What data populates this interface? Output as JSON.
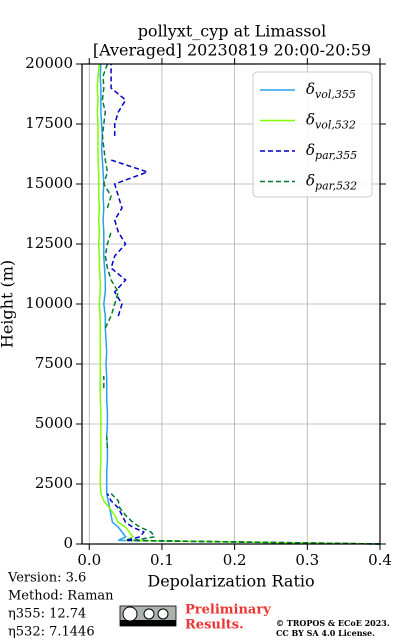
{
  "chart_data": {
    "type": "profile",
    "title": "pollyxt_cyp at Limassol",
    "subtitle": "[Averaged] 20230819 20:00-20:59",
    "xlabel": "Depolarization Ratio",
    "ylabel": "Height (m)",
    "xlim": [
      -0.01,
      0.4
    ],
    "ylim": [
      0,
      20000
    ],
    "xticks": [
      {
        "value": 0,
        "label": "0.0"
      },
      0.1,
      0.2,
      0.3,
      0.4
    ],
    "yticks": [
      0,
      2500,
      5000,
      7500,
      10000,
      12500,
      15000,
      17500,
      20000
    ],
    "grid": true,
    "legend": "upper right",
    "heights": [
      0,
      150,
      300,
      500,
      700,
      900,
      1200,
      1500,
      1800,
      2100,
      2500,
      3000,
      3500,
      4000,
      4500,
      5000,
      5500,
      6000,
      6500,
      7000,
      7500,
      8000,
      8500,
      9000,
      9500,
      10000,
      10500,
      11000,
      11500,
      12000,
      12500,
      13000,
      13500,
      14000,
      14500,
      15000,
      15500,
      16000,
      16500,
      17000,
      17500,
      18000,
      18500,
      19000,
      19500,
      20000
    ],
    "series": [
      {
        "name": "δvol,355",
        "color": "#2a9df4",
        "dash": false,
        "values": [
          0.4,
          0.04,
          0.05,
          0.045,
          0.04,
          0.032,
          0.03,
          0.028,
          0.026,
          0.024,
          0.024,
          0.024,
          0.025,
          0.025,
          0.024,
          0.025,
          0.025,
          0.024,
          0.024,
          0.024,
          0.023,
          0.024,
          0.023,
          0.022,
          0.022,
          0.02,
          0.022,
          0.022,
          0.021,
          0.02,
          0.02,
          0.02,
          0.019,
          0.02,
          0.019,
          0.02,
          0.019,
          0.018,
          0.017,
          0.018,
          0.017,
          0.016,
          0.016,
          0.016,
          0.015,
          0.016
        ]
      },
      {
        "name": "δvol,532",
        "color": "#7fff00",
        "dash": false,
        "values": [
          0.4,
          0.05,
          0.06,
          0.055,
          0.05,
          0.04,
          0.035,
          0.028,
          0.02,
          0.016,
          0.015,
          0.015,
          0.016,
          0.016,
          0.016,
          0.016,
          0.016,
          0.015,
          0.015,
          0.015,
          0.015,
          0.015,
          0.015,
          0.015,
          0.015,
          0.014,
          0.015,
          0.015,
          0.014,
          0.014,
          0.013,
          0.014,
          0.013,
          0.014,
          0.013,
          0.013,
          0.013,
          0.012,
          0.012,
          0.012,
          0.012,
          0.011,
          0.012,
          0.011,
          0.012,
          0.014
        ]
      },
      {
        "name": "δpar,355",
        "color": "#0000cc",
        "dash": true,
        "values": [
          0.4,
          0.05,
          0.07,
          0.075,
          0.06,
          0.05,
          0.045,
          0.04,
          0.03,
          0.025,
          null,
          null,
          null,
          null,
          null,
          null,
          null,
          null,
          null,
          null,
          null,
          null,
          null,
          null,
          0.04,
          0.045,
          0.035,
          0.05,
          0.03,
          0.035,
          0.05,
          0.04,
          0.035,
          0.045,
          0.04,
          0.035,
          0.08,
          0.03,
          null,
          0.035,
          0.035,
          0.04,
          0.05,
          0.03,
          0.03,
          0.03
        ]
      },
      {
        "name": "δpar,532",
        "color": "#007a33",
        "dash": true,
        "values": [
          0.4,
          0.06,
          0.09,
          0.085,
          0.07,
          0.06,
          0.05,
          0.042,
          0.04,
          0.03,
          null,
          null,
          null,
          0.025,
          0.024,
          null,
          null,
          null,
          0.02,
          0.02,
          null,
          null,
          null,
          0.022,
          0.03,
          0.035,
          0.04,
          0.03,
          0.025,
          0.022,
          0.025,
          0.03,
          null,
          0.025,
          0.03,
          0.02,
          0.025,
          0.022,
          0.02,
          0.018,
          0.02,
          0.022,
          0.018,
          0.02,
          0.019,
          0.025
        ]
      }
    ],
    "annotations": [
      "Version: 3.6",
      "Method: Raman",
      "η355:  12.74",
      "η532: 7.1446"
    ],
    "notice": [
      "Preliminary",
      "Results."
    ],
    "copyright": [
      "© TROPOS & ECoE 2023.",
      "CC BY SA 4.0 License."
    ]
  }
}
